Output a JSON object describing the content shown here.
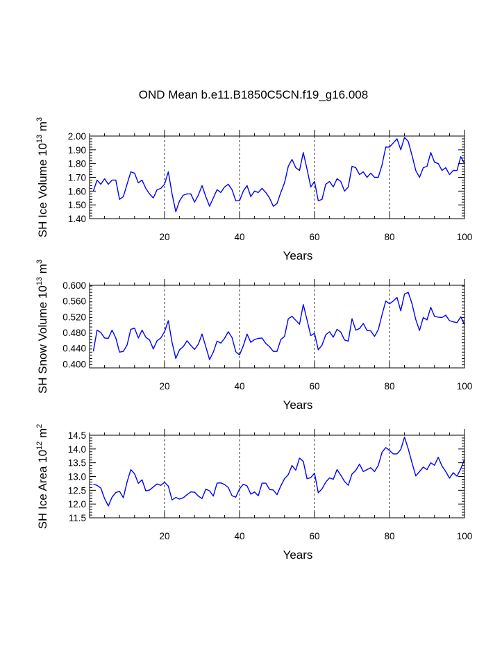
{
  "figure": {
    "title": "OND Mean b.e11.B1850C5CN.f19_g16.008"
  },
  "colors": {
    "line": "#0000ff",
    "axis": "#000000",
    "grid": "#000000"
  },
  "chart_data": [
    {
      "type": "line",
      "name": "ice-volume",
      "xlabel": "Years",
      "ylabel": {
        "text": "SH Ice Volume 10",
        "exp": "13",
        "unit": " m",
        "unit_exp": "3"
      },
      "xlim": [
        0,
        100
      ],
      "ylim": [
        1.4,
        2.0
      ],
      "yticks": [
        1.4,
        1.5,
        1.6,
        1.7,
        1.8,
        1.9,
        2.0
      ],
      "ytick_labels": [
        "1.40",
        "1.50",
        "1.60",
        "1.70",
        "1.80",
        "1.90",
        "2.00"
      ],
      "xticks": [
        20,
        40,
        60,
        80,
        100
      ],
      "xtick_labels": [
        "20",
        "40",
        "60",
        "80",
        "100"
      ],
      "ref_lines_x": [
        20,
        40,
        60,
        80
      ],
      "series": [
        {
          "name": "Ice Volume",
          "values": [
            1.6,
            1.68,
            1.65,
            1.69,
            1.65,
            1.68,
            1.68,
            1.54,
            1.56,
            1.65,
            1.74,
            1.73,
            1.66,
            1.68,
            1.62,
            1.58,
            1.55,
            1.61,
            1.62,
            1.65,
            1.74,
            1.58,
            1.45,
            1.53,
            1.57,
            1.58,
            1.58,
            1.52,
            1.57,
            1.64,
            1.56,
            1.49,
            1.55,
            1.61,
            1.59,
            1.63,
            1.65,
            1.61,
            1.53,
            1.53,
            1.6,
            1.64,
            1.56,
            1.6,
            1.59,
            1.62,
            1.59,
            1.55,
            1.49,
            1.51,
            1.59,
            1.66,
            1.78,
            1.83,
            1.77,
            1.75,
            1.88,
            1.76,
            1.63,
            1.67,
            1.53,
            1.54,
            1.65,
            1.67,
            1.63,
            1.69,
            1.67,
            1.6,
            1.63,
            1.78,
            1.77,
            1.72,
            1.74,
            1.7,
            1.73,
            1.7,
            1.7,
            1.79,
            1.92,
            1.92,
            1.95,
            1.98,
            1.9,
            1.99,
            1.96,
            1.86,
            1.75,
            1.7,
            1.77,
            1.78,
            1.88,
            1.81,
            1.8,
            1.75,
            1.77,
            1.72,
            1.75,
            1.75,
            1.85,
            1.8
          ]
        }
      ]
    },
    {
      "type": "line",
      "name": "snow-volume",
      "xlabel": "Years",
      "ylabel": {
        "text": "SH Snow Volume 10",
        "exp": "13",
        "unit": " m",
        "unit_exp": "3"
      },
      "xlim": [
        0,
        100
      ],
      "ylim": [
        0.39,
        0.6
      ],
      "yticks": [
        0.4,
        0.44,
        0.48,
        0.52,
        0.56,
        0.6
      ],
      "ytick_labels": [
        "0.400",
        "0.440",
        "0.480",
        "0.520",
        "0.560",
        "0.600"
      ],
      "xticks": [
        20,
        40,
        60,
        80,
        100
      ],
      "xtick_labels": [
        "20",
        "40",
        "60",
        "80",
        "100"
      ],
      "ref_lines_x": [
        20,
        40,
        60,
        80
      ],
      "series": [
        {
          "name": "Snow Volume",
          "values": [
            0.432,
            0.486,
            0.48,
            0.466,
            0.465,
            0.486,
            0.466,
            0.43,
            0.432,
            0.448,
            0.488,
            0.491,
            0.466,
            0.486,
            0.468,
            0.461,
            0.438,
            0.459,
            0.466,
            0.482,
            0.51,
            0.455,
            0.414,
            0.436,
            0.444,
            0.459,
            0.447,
            0.437,
            0.45,
            0.476,
            0.444,
            0.411,
            0.43,
            0.458,
            0.453,
            0.465,
            0.482,
            0.467,
            0.431,
            0.423,
            0.446,
            0.476,
            0.455,
            0.462,
            0.465,
            0.466,
            0.452,
            0.444,
            0.432,
            0.432,
            0.462,
            0.47,
            0.515,
            0.521,
            0.511,
            0.501,
            0.551,
            0.512,
            0.472,
            0.478,
            0.436,
            0.448,
            0.474,
            0.482,
            0.468,
            0.488,
            0.481,
            0.461,
            0.458,
            0.515,
            0.486,
            0.49,
            0.503,
            0.485,
            0.484,
            0.47,
            0.487,
            0.525,
            0.56,
            0.553,
            0.56,
            0.569,
            0.535,
            0.578,
            0.582,
            0.553,
            0.513,
            0.485,
            0.518,
            0.512,
            0.544,
            0.521,
            0.519,
            0.518,
            0.524,
            0.51,
            0.507,
            0.505,
            0.52,
            0.5
          ]
        }
      ]
    },
    {
      "type": "line",
      "name": "ice-area",
      "xlabel": "Years",
      "ylabel": {
        "text": "SH Ice Area 10",
        "exp": "12",
        "unit": " m",
        "unit_exp": "2"
      },
      "xlim": [
        0,
        100
      ],
      "ylim": [
        11.5,
        14.5
      ],
      "yticks": [
        11.5,
        12.0,
        12.5,
        13.0,
        13.5,
        14.0,
        14.5
      ],
      "ytick_labels": [
        "11.5",
        "12.0",
        "12.5",
        "13.0",
        "13.5",
        "14.0",
        "14.5"
      ],
      "xticks": [
        20,
        40,
        60,
        80,
        100
      ],
      "xtick_labels": [
        "20",
        "40",
        "60",
        "80",
        "100"
      ],
      "ref_lines_x": [
        20,
        40,
        60,
        80
      ],
      "series": [
        {
          "name": "Ice Area",
          "values": [
            12.72,
            12.68,
            12.58,
            12.2,
            11.93,
            12.25,
            12.42,
            12.46,
            12.23,
            12.8,
            13.25,
            13.1,
            12.75,
            12.88,
            12.48,
            12.51,
            12.62,
            12.73,
            12.68,
            12.79,
            12.65,
            12.15,
            12.24,
            12.18,
            12.23,
            12.34,
            12.44,
            12.43,
            12.29,
            12.2,
            12.54,
            12.48,
            12.29,
            12.76,
            12.77,
            12.71,
            12.6,
            12.3,
            12.25,
            12.55,
            12.72,
            12.66,
            12.36,
            12.44,
            12.3,
            12.76,
            12.76,
            12.53,
            12.51,
            12.34,
            12.66,
            12.92,
            13.07,
            13.4,
            13.23,
            13.67,
            13.55,
            12.92,
            12.96,
            13.12,
            12.41,
            12.55,
            12.8,
            12.95,
            12.9,
            13.25,
            13.05,
            12.82,
            12.68,
            13.09,
            13.22,
            13.45,
            13.18,
            13.25,
            13.32,
            13.18,
            13.4,
            13.88,
            14.05,
            13.95,
            13.82,
            13.82,
            13.98,
            14.43,
            14.0,
            13.5,
            13.02,
            13.18,
            13.34,
            13.25,
            13.5,
            13.41,
            13.7,
            13.38,
            13.18,
            12.94,
            13.14,
            13.01,
            13.28,
            13.62
          ]
        }
      ]
    }
  ]
}
